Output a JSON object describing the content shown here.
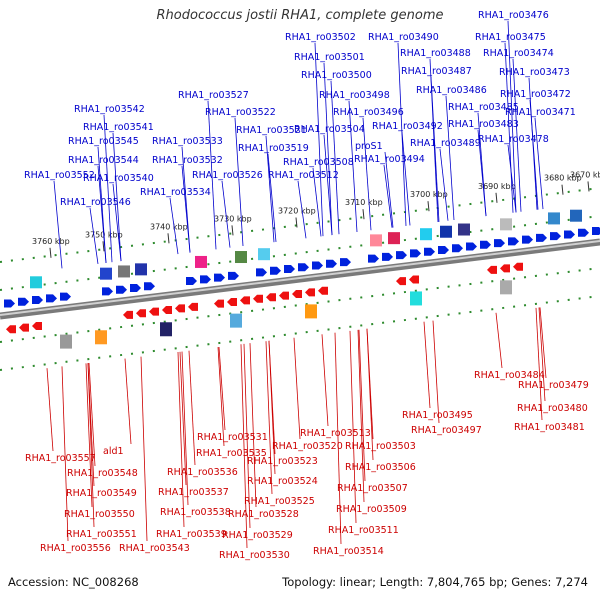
{
  "title": "Rhodococcus jostii RHA1, complete genome",
  "footer": {
    "accession": "Accession: NC_008268",
    "info": "Topology: linear; Length: 7,804,765 bp; Genes: 7,274"
  },
  "colors": {
    "forward_label": "#0000cc",
    "reverse_label": "#cc0000",
    "axis": "#a0a0a0",
    "tick": "#2e8b2e"
  },
  "kbp_ticks": [
    "3760 kbp",
    "3750 kbp",
    "3740 kbp",
    "3730 kbp",
    "3720 kbp",
    "3710 kbp",
    "3700 kbp",
    "3690 kbp",
    "3680 kbp",
    "3670 kbp"
  ],
  "forward_labels": [
    "RHA1_ro03476",
    "RHA1_ro03502",
    "RHA1_ro03490",
    "RHA1_ro03475",
    "RHA1_ro03501",
    "RHA1_ro03488",
    "RHA1_ro03474",
    "RHA1_ro03500",
    "RHA1_ro03487",
    "RHA1_ro03473",
    "RHA1_ro03486",
    "RHA1_ro03527",
    "RHA1_ro03498",
    "RHA1_ro03472",
    "RHA1_ro03542",
    "RHA1_ro03522",
    "RHA1_ro03496",
    "RHA1_ro03485",
    "RHA1_ro03471",
    "RHA1_ro03541",
    "RHA1_ro03492",
    "RHA1_ro03483",
    "RHA1_ro03545",
    "RHA1_ro03533",
    "RHA1_ro03521",
    "RHA1_ro03504",
    "RHA1_ro03478",
    "proS1",
    "RHA1_ro03489",
    "RHA1_ro03519",
    "RHA1_ro03544",
    "RHA1_ro03532",
    "RHA1_ro03508",
    "RHA1_ro03494",
    "RHA1_ro03552",
    "RHA1_ro03540",
    "RHA1_ro03526",
    "RHA1_ro03512",
    "RHA1_ro03534",
    "RHA1_ro03546"
  ],
  "reverse_labels": [
    "RHA1_ro03484",
    "RHA1_ro03479",
    "RHA1_ro03495",
    "RHA1_ro03480",
    "RHA1_ro03497",
    "RHA1_ro03481",
    "RHA1_ro03513",
    "RHA1_ro03531",
    "RHA1_ro03520",
    "RHA1_ro03503",
    "RHA1_ro03535",
    "ald1",
    "RHA1_ro03557",
    "RHA1_ro03523",
    "RHA1_ro03506",
    "RHA1_ro03536",
    "RHA1_ro03548",
    "RHA1_ro03524",
    "RHA1_ro03507",
    "RHA1_ro03549",
    "RHA1_ro03537",
    "RHA1_ro03525",
    "RHA1_ro03509",
    "RHA1_ro03550",
    "RHA1_ro03538",
    "RHA1_ro03528",
    "RHA1_ro03511",
    "RHA1_ro03551",
    "RHA1_ro03539",
    "RHA1_ro03529",
    "RHA1_ro03514",
    "RHA1_ro03556",
    "RHA1_ro03543",
    "RHA1_ro03530"
  ]
}
